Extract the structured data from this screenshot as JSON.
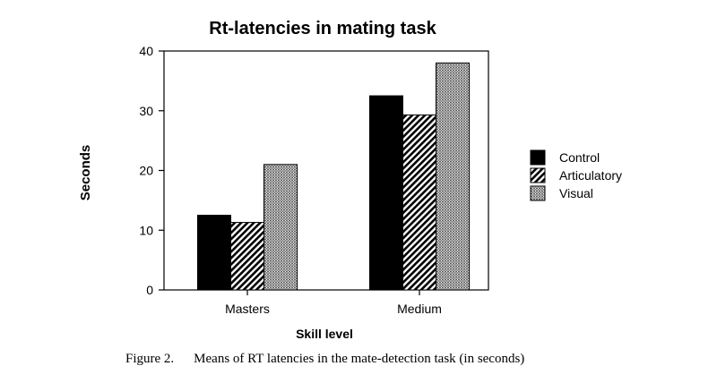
{
  "chart_data": {
    "type": "bar",
    "title": "Rt-latencies in mating task",
    "xlabel": "Skill level",
    "ylabel": "Seconds",
    "ylim": [
      0,
      40
    ],
    "yticks": [
      "0",
      "10",
      "20",
      "30",
      "40"
    ],
    "categories": [
      "Masters",
      "Medium"
    ],
    "series": [
      {
        "name": "Control",
        "values": [
          12.5,
          32.5
        ],
        "pattern": "solid"
      },
      {
        "name": "Articulatory",
        "values": [
          11.3,
          29.3
        ],
        "pattern": "diagonal-hatch"
      },
      {
        "name": "Visual",
        "values": [
          21,
          38
        ],
        "pattern": "stipple"
      }
    ],
    "legend_position": "right",
    "grid": false
  },
  "caption": {
    "number": "Figure 2.",
    "text": "Means of RT latencies in the mate-detection task (in seconds)"
  },
  "colors": {
    "bar_fill": "#000000",
    "background": "#ffffff"
  }
}
